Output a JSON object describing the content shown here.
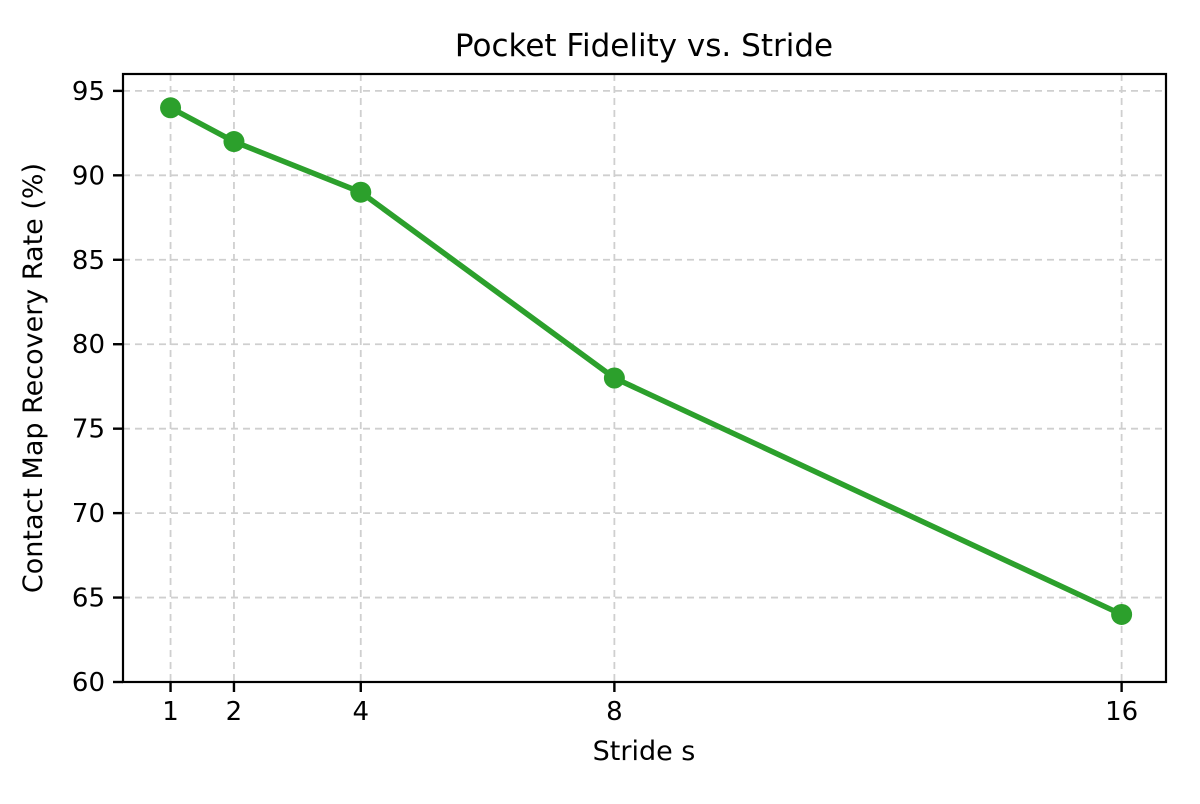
{
  "chart_data": {
    "type": "line",
    "title": "Pocket Fidelity vs. Stride",
    "xlabel": "Stride s",
    "ylabel": "Contact Map Recovery Rate (%)",
    "x": [
      1,
      2,
      4,
      8,
      16
    ],
    "y": [
      94,
      92,
      89,
      78,
      64
    ],
    "x_ticks": [
      "1",
      "2",
      "4",
      "8",
      "16"
    ],
    "x_tick_values": [
      1,
      2,
      4,
      8,
      16
    ],
    "y_ticks": [
      "60",
      "65",
      "70",
      "75",
      "80",
      "85",
      "90",
      "95"
    ],
    "y_tick_values": [
      60,
      65,
      70,
      75,
      80,
      85,
      90,
      95
    ],
    "xlim": [
      0.25,
      16.7
    ],
    "ylim": [
      60,
      96
    ],
    "x_scale": "linear",
    "grid": true,
    "grid_style": "dashed",
    "legend": "none",
    "line_color": "#2ca02c",
    "marker": "circle",
    "grid_color": "#cfcfcf",
    "spine_color": "#000000",
    "text_color": "#000000",
    "background_color": "#ffffff"
  }
}
